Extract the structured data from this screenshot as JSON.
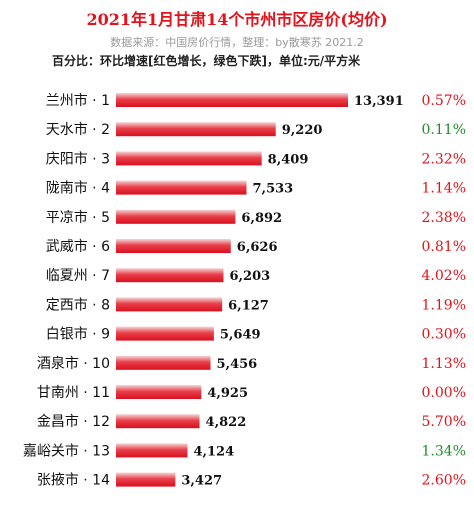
{
  "header": {
    "title": "2021年1月甘肃14个市州市区房价(均价)",
    "source": "数据来源：中国房价行情，整理：by散寒苏 2021.2",
    "note": "百分比：环比增速[红色增长，绿色下跌]，单位:元/平方米"
  },
  "colors": {
    "bar_light": "#f6d5d5",
    "bar_mid": "#e8404a",
    "bar_dark": "#d90f1f",
    "increase": "#e4121b",
    "decrease": "#1f8c2c",
    "title": "#e4121b"
  },
  "chart_data": {
    "type": "bar",
    "orientation": "horizontal",
    "unit": "元/平方米",
    "categories": [
      "兰州市 · 1",
      "天水市 · 2",
      "庆阳市 · 3",
      "陇南市 · 4",
      "平凉市 · 5",
      "武威市 · 6",
      "临夏州 · 7",
      "定西市 · 8",
      "白银市 · 9",
      "酒泉市 · 10",
      "甘南州 · 11",
      "金昌市 · 12",
      "嘉峪关市 · 13",
      "张掖市 · 14"
    ],
    "values": [
      13391,
      9220,
      8409,
      7533,
      6892,
      6626,
      6203,
      6127,
      5649,
      5456,
      4925,
      4822,
      4124,
      3427
    ],
    "value_labels": [
      "13,391",
      "9,220",
      "8,409",
      "7,533",
      "6,892",
      "6,626",
      "6,203",
      "6,127",
      "5,649",
      "5,456",
      "4,925",
      "4,822",
      "4,124",
      "3,427"
    ],
    "change_labels": [
      "0.57%",
      "0.11%",
      "2.32%",
      "1.14%",
      "2.38%",
      "0.81%",
      "4.02%",
      "1.19%",
      "0.30%",
      "1.13%",
      "0.00%",
      "5.70%",
      "1.34%",
      "2.60%"
    ],
    "change_direction": [
      "up",
      "down",
      "up",
      "up",
      "up",
      "up",
      "up",
      "up",
      "up",
      "up",
      "up",
      "up",
      "down",
      "up"
    ],
    "xlim": [
      0,
      13391
    ],
    "grid": false,
    "legend": "none"
  }
}
